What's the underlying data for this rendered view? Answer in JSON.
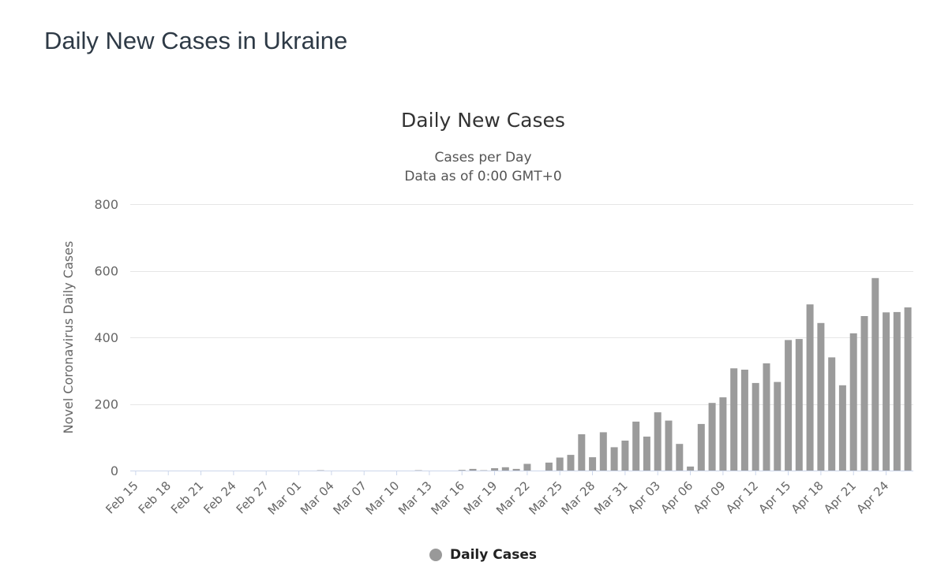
{
  "page": {
    "title": "Daily New Cases in Ukraine"
  },
  "chart_data": {
    "type": "bar",
    "title": "Daily New Cases",
    "subtitle": [
      "Cases per Day",
      "Data as of 0:00 GMT+0"
    ],
    "ylabel": "Novel Coronavirus Daily Cases",
    "xlabel": "",
    "ylim": [
      0,
      800
    ],
    "y_ticks": [
      0,
      200,
      400,
      600,
      800
    ],
    "x_tick_step": 3,
    "grid": true,
    "legend": [
      "Daily Cases"
    ],
    "legend_position": "bottom",
    "bar_color": "#9b9b9b",
    "grid_color": "#e6e6e6",
    "axis_line_color": "#ccd6eb",
    "label_color": "#666666",
    "categories": [
      "Feb 15",
      "Feb 16",
      "Feb 17",
      "Feb 18",
      "Feb 19",
      "Feb 20",
      "Feb 21",
      "Feb 22",
      "Feb 23",
      "Feb 24",
      "Feb 25",
      "Feb 26",
      "Feb 27",
      "Feb 28",
      "Feb 29",
      "Mar 01",
      "Mar 02",
      "Mar 03",
      "Mar 04",
      "Mar 05",
      "Mar 06",
      "Mar 07",
      "Mar 08",
      "Mar 09",
      "Mar 10",
      "Mar 11",
      "Mar 12",
      "Mar 13",
      "Mar 14",
      "Mar 15",
      "Mar 16",
      "Mar 17",
      "Mar 18",
      "Mar 19",
      "Mar 20",
      "Mar 21",
      "Mar 22",
      "Mar 23",
      "Mar 24",
      "Mar 25",
      "Mar 26",
      "Mar 27",
      "Mar 28",
      "Mar 29",
      "Mar 30",
      "Mar 31",
      "Apr 01",
      "Apr 02",
      "Apr 03",
      "Apr 04",
      "Apr 05",
      "Apr 06",
      "Apr 07",
      "Apr 08",
      "Apr 09",
      "Apr 10",
      "Apr 11",
      "Apr 12",
      "Apr 13",
      "Apr 14",
      "Apr 15",
      "Apr 16",
      "Apr 17",
      "Apr 18",
      "Apr 19",
      "Apr 20",
      "Apr 21",
      "Apr 22",
      "Apr 23",
      "Apr 24",
      "Apr 25",
      "Apr 26"
    ],
    "values": [
      0,
      0,
      0,
      0,
      0,
      0,
      0,
      0,
      0,
      0,
      0,
      0,
      0,
      0,
      0,
      0,
      0,
      1,
      0,
      0,
      0,
      0,
      0,
      0,
      0,
      0,
      1,
      0,
      0,
      0,
      2,
      5,
      1,
      7,
      10,
      5,
      20,
      0,
      24,
      39,
      47,
      109,
      40,
      115,
      70,
      90,
      147,
      102,
      175,
      150,
      80,
      12,
      140,
      203,
      220,
      307,
      303,
      263,
      322,
      266,
      392,
      395,
      499,
      443,
      340,
      256,
      412,
      464,
      578,
      475,
      476,
      490
    ]
  }
}
